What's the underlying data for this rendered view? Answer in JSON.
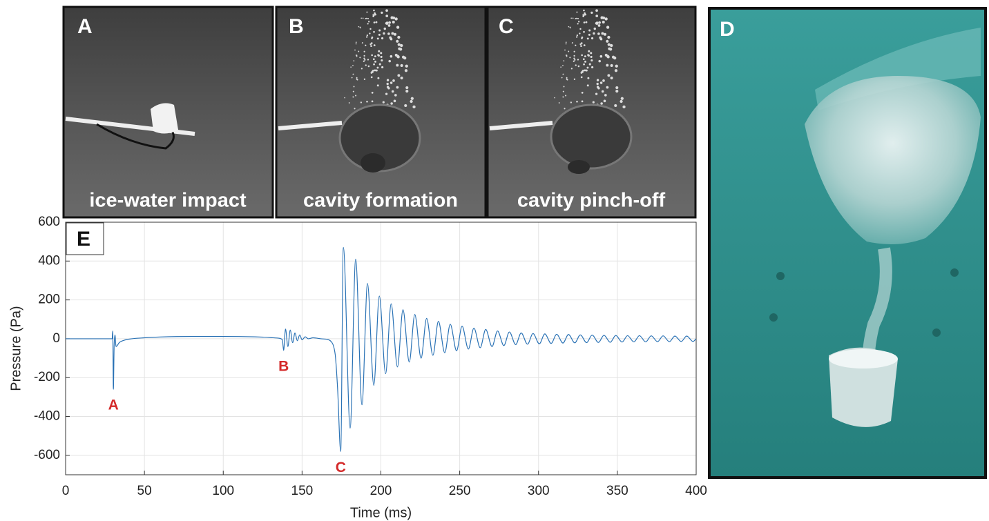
{
  "panels": [
    {
      "label": "A",
      "caption": "ice-water impact"
    },
    {
      "label": "B",
      "caption": "cavity formation"
    },
    {
      "label": "C",
      "caption": "cavity pinch-off"
    },
    {
      "label": "D"
    }
  ],
  "chart_data": {
    "type": "line",
    "panel_label": "E",
    "xlabel": "Time (ms)",
    "ylabel": "Pressure (Pa)",
    "xlim": [
      0,
      400
    ],
    "ylim": [
      -700,
      600
    ],
    "xticks": [
      0,
      50,
      100,
      150,
      200,
      250,
      300,
      350,
      400
    ],
    "yticks": [
      -600,
      -400,
      -200,
      0,
      200,
      400,
      600
    ],
    "grid": true,
    "x": [
      0,
      29.5,
      29.9,
      30.3,
      30.8,
      31.3,
      32,
      34,
      37,
      42,
      50,
      60,
      80,
      100,
      120,
      130,
      136,
      137.5,
      138.3,
      139.5,
      141,
      142.5,
      144,
      145.5,
      147,
      148.5,
      150,
      152,
      154,
      157,
      162,
      166,
      169,
      171,
      172.5,
      174.5,
      176.2,
      180.5,
      184,
      188,
      191.5,
      195.5,
      199,
      203,
      206.5,
      210.5,
      214,
      218,
      221.5,
      225.5,
      229,
      233,
      236.5,
      240.5,
      244,
      248,
      251.5,
      255.5,
      259,
      263,
      266.5,
      270.5,
      274,
      278,
      281.5,
      285.5,
      289,
      293,
      296.5,
      300.5,
      304,
      308,
      311.5,
      315.5,
      319,
      323,
      326.5,
      330.5,
      334,
      338,
      341.5,
      345.5,
      349,
      353,
      356.5,
      360.5,
      364,
      368,
      371.5,
      375.5,
      379,
      383,
      386.5,
      390.5,
      394,
      398,
      400
    ],
    "series": [
      {
        "color": "#2a72b5",
        "values": [
          0,
          0,
          40,
          -260,
          -30,
          20,
          -40,
          -20,
          -8,
          0,
          5,
          9,
          12,
          12,
          10,
          6,
          2,
          -5,
          -60,
          50,
          -40,
          45,
          -20,
          30,
          -10,
          20,
          -5,
          10,
          0,
          5,
          0,
          -3,
          -20,
          -80,
          -250,
          -580,
          470,
          -460,
          410,
          -340,
          285,
          -240,
          220,
          -180,
          180,
          -145,
          150,
          -120,
          125,
          -100,
          105,
          -85,
          90,
          -72,
          75,
          -62,
          65,
          -53,
          55,
          -46,
          48,
          -40,
          40,
          -35,
          35,
          -30,
          30,
          -28,
          27,
          -26,
          25,
          -24,
          23,
          -22,
          22,
          -21,
          20,
          -20,
          19,
          -19,
          18,
          -18,
          17,
          -17,
          16,
          -16,
          16,
          -16,
          15,
          -15,
          15,
          -15,
          14,
          -14,
          14,
          -14,
          0
        ]
      }
    ],
    "annotations": [
      {
        "text": "A",
        "x": 30.3,
        "y": -260
      },
      {
        "text": "B",
        "x": 138.3,
        "y": -60
      },
      {
        "text": "C",
        "x": 174.5,
        "y": -580
      }
    ],
    "annotation_color": "#d42a2a"
  }
}
